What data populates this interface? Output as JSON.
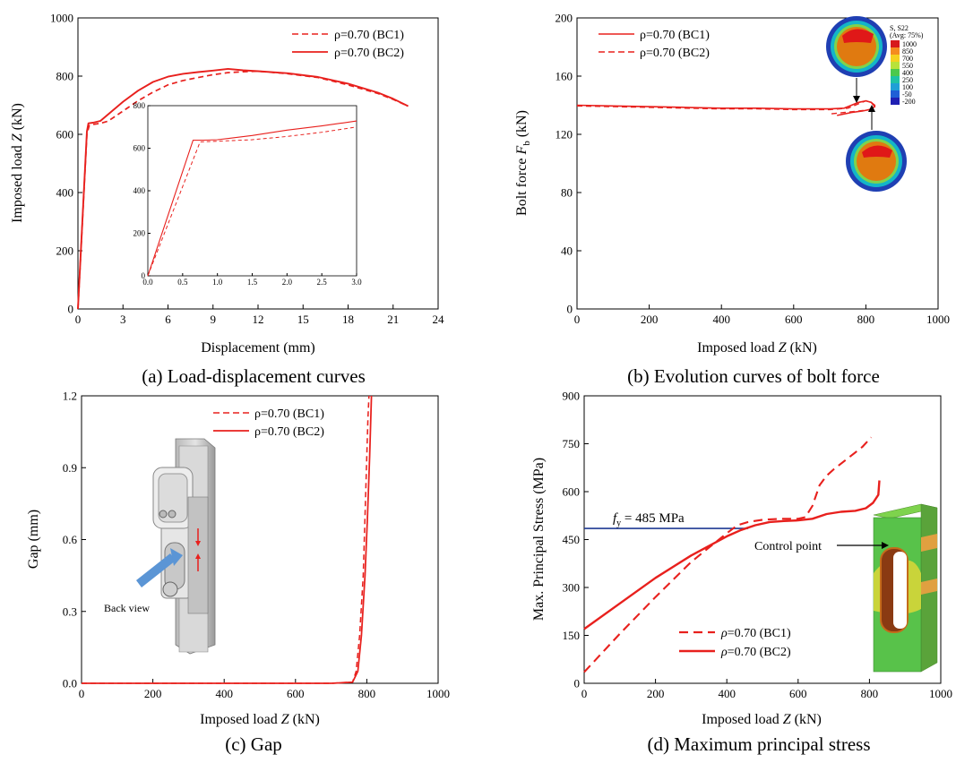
{
  "colors": {
    "series": "#e8201d",
    "yield_line": "#1f3a93",
    "axis": "#000000"
  },
  "chart_data": [
    {
      "id": "a",
      "type": "line",
      "caption": "(a) Load-displacement curves",
      "xlabel": "Displacement (mm)",
      "ylabel": "Imposed load Z (kN)",
      "xlim": [
        0,
        24
      ],
      "ylim": [
        0,
        1000
      ],
      "xticks": [
        "0",
        "3",
        "6",
        "9",
        "12",
        "15",
        "18",
        "21",
        "24"
      ],
      "yticks": [
        "0",
        "200",
        "400",
        "600",
        "800",
        "1000"
      ],
      "legend": "top-right",
      "series": [
        {
          "name": "ρ=0.70 (BC1)",
          "dash": true,
          "x": [
            0,
            0.6,
            0.75,
            1,
            1.5,
            2,
            3,
            4,
            5,
            6,
            7,
            8,
            9,
            10,
            11,
            12,
            14,
            16,
            18,
            20,
            21,
            22
          ],
          "y": [
            0,
            600,
            630,
            634,
            638,
            645,
            680,
            715,
            745,
            770,
            785,
            795,
            805,
            812,
            815,
            817,
            808,
            795,
            770,
            740,
            720,
            697
          ]
        },
        {
          "name": "ρ=0.70 (BC2)",
          "dash": false,
          "x": [
            0,
            0.6,
            0.7,
            1,
            1.5,
            2,
            3,
            4,
            5,
            6,
            7,
            8,
            9,
            10,
            11,
            12,
            14,
            16,
            18,
            20,
            21,
            22
          ],
          "y": [
            0,
            610,
            638,
            640,
            646,
            668,
            712,
            750,
            780,
            798,
            808,
            814,
            819,
            825,
            820,
            817,
            810,
            797,
            774,
            743,
            722,
            697
          ]
        }
      ],
      "inset": {
        "xlim": [
          0,
          3
        ],
        "ylim": [
          0,
          800
        ],
        "xticks": [
          "0.0",
          "0.5",
          "1.0",
          "1.5",
          "2.0",
          "2.5",
          "3.0"
        ],
        "yticks": [
          "0",
          "200",
          "400",
          "600",
          "800"
        ],
        "series": [
          {
            "name": "ρ=0.70 (BC1)",
            "dash": true,
            "x": [
              0,
              0.75,
              1.0,
              1.5,
              2.0,
              2.5,
              3.0
            ],
            "y": [
              0,
              630,
              633,
              640,
              655,
              675,
              700
            ]
          },
          {
            "name": "ρ=0.70 (BC2)",
            "dash": false,
            "x": [
              0,
              0.65,
              0.8,
              1.0,
              1.5,
              2.0,
              2.5,
              3.0
            ],
            "y": [
              0,
              638,
              638,
              640,
              660,
              685,
              705,
              728
            ]
          }
        ]
      }
    },
    {
      "id": "b",
      "type": "line",
      "caption": "(b) Evolution curves of bolt force",
      "xlabel": "Imposed load Z (kN)",
      "ylabel": "Bolt force Fb (kN)",
      "xlim": [
        0,
        1000
      ],
      "ylim": [
        0,
        200
      ],
      "xticks": [
        "0",
        "200",
        "400",
        "600",
        "800",
        "1000"
      ],
      "yticks": [
        "0",
        "40",
        "80",
        "120",
        "160",
        "200"
      ],
      "legend": "top-left",
      "series": [
        {
          "name": "ρ=0.70 (BC1)",
          "dash": false,
          "x": [
            0,
            100,
            200,
            300,
            400,
            500,
            600,
            700,
            740,
            760,
            780,
            800,
            815,
            825,
            810,
            790,
            760,
            720
          ],
          "y": [
            140,
            139.5,
            139,
            138.5,
            138,
            138,
            137.5,
            137.5,
            138,
            140,
            142,
            143,
            142,
            139,
            137,
            136,
            135,
            133
          ]
        },
        {
          "name": "ρ=0.70 (BC2)",
          "dash": true,
          "x": [
            0,
            100,
            200,
            300,
            400,
            500,
            600,
            700,
            750,
            780,
            800,
            815,
            825,
            810,
            780,
            740,
            700
          ],
          "y": [
            139.5,
            139,
            138.5,
            138,
            137.5,
            137.5,
            137,
            137,
            138,
            141,
            143,
            142,
            140,
            137,
            136,
            135,
            134
          ]
        }
      ],
      "contour_legend": {
        "title": "S, S22",
        "subtitle": "(Avg: 75%)",
        "labels": [
          "1000",
          "850",
          "700",
          "550",
          "400",
          "250",
          "100",
          "-50",
          "-200"
        ]
      }
    },
    {
      "id": "c",
      "type": "line",
      "caption": "(c) Gap",
      "xlabel": "Imposed load Z (kN)",
      "ylabel": "Gap (mm)",
      "xlim": [
        0,
        1000
      ],
      "ylim": [
        0,
        1.2
      ],
      "xticks": [
        "0",
        "200",
        "400",
        "600",
        "800",
        "1000"
      ],
      "yticks": [
        "0.0",
        "0.3",
        "0.6",
        "0.9",
        "1.2"
      ],
      "legend": "top-center",
      "annotation": "Back view",
      "series": [
        {
          "name": "ρ=0.70 (BC1)",
          "dash": true,
          "x": [
            0,
            700,
            760,
            770,
            780,
            790,
            795,
            800,
            803,
            806
          ],
          "y": [
            0,
            0,
            0.005,
            0.05,
            0.2,
            0.45,
            0.7,
            0.95,
            1.1,
            1.2
          ]
        },
        {
          "name": "ρ=0.70 (BC2)",
          "dash": false,
          "x": [
            0,
            700,
            760,
            775,
            785,
            795,
            802,
            808,
            811,
            813
          ],
          "y": [
            0,
            0,
            0.005,
            0.05,
            0.2,
            0.45,
            0.7,
            0.95,
            1.1,
            1.2
          ]
        }
      ]
    },
    {
      "id": "d",
      "type": "line",
      "caption": "(d) Maximum principal stress",
      "xlabel": "Imposed load Z (kN)",
      "ylabel": "Max. Principal Stress (MPa)",
      "xlim": [
        0,
        1000
      ],
      "ylim": [
        0,
        900
      ],
      "xticks": [
        "0",
        "200",
        "400",
        "600",
        "800",
        "1000"
      ],
      "yticks": [
        "0",
        "150",
        "300",
        "450",
        "600",
        "750",
        "900"
      ],
      "legend": "bottom-center",
      "yield_label": "fy = 485 MPa",
      "yield_value": 485,
      "yield_xrange": [
        0,
        460
      ],
      "annotation": "Control point",
      "series": [
        {
          "name": "ρ=0.70 (BC1)",
          "dash": true,
          "x": [
            0,
            100,
            200,
            300,
            400,
            430,
            460,
            500,
            550,
            600,
            620,
            640,
            660,
            680,
            700,
            740,
            780,
            805
          ],
          "y": [
            35,
            155,
            270,
            380,
            470,
            495,
            505,
            512,
            515,
            515,
            520,
            555,
            620,
            650,
            670,
            705,
            740,
            770
          ]
        },
        {
          "name": "ρ=0.70 (BC2)",
          "dash": false,
          "x": [
            0,
            100,
            200,
            300,
            400,
            440,
            480,
            520,
            560,
            600,
            640,
            680,
            720,
            760,
            790,
            810,
            825,
            828
          ],
          "y": [
            170,
            250,
            330,
            400,
            460,
            480,
            495,
            505,
            508,
            510,
            515,
            530,
            537,
            540,
            548,
            565,
            590,
            635
          ]
        }
      ]
    }
  ],
  "legend_labels": {
    "bc1": "ρ=0.70 (BC1)",
    "bc2": "ρ=0.70 (BC2)"
  }
}
